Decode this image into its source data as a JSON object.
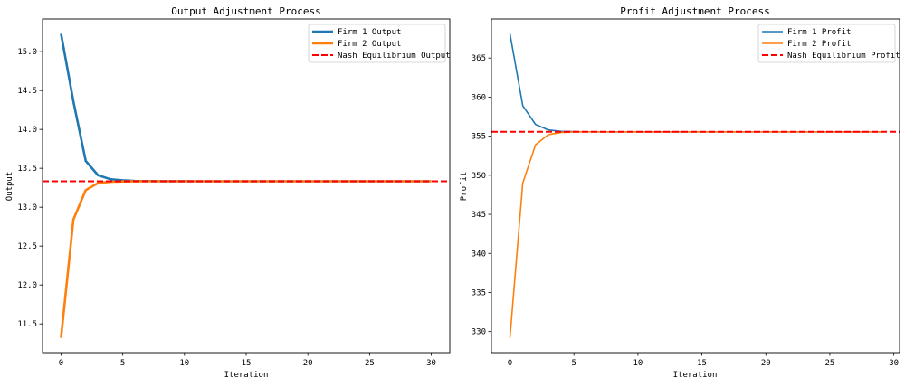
{
  "chart_data": [
    {
      "type": "line",
      "title": "Output Adjustment Process",
      "xlabel": "Iteration",
      "ylabel": "Output",
      "xlim": [
        -1.5,
        31.5
      ],
      "ylim": [
        11.13,
        15.42
      ],
      "xticks": [
        0,
        5,
        10,
        15,
        20,
        25,
        30
      ],
      "yticks": [
        11.5,
        12.0,
        12.5,
        13.0,
        13.5,
        14.0,
        14.5,
        15.0
      ],
      "grid": false,
      "legend_position": "top-right",
      "series": [
        {
          "name": "Firm 1 Output",
          "color": "#1f77b4",
          "x_start": 0,
          "values": [
            15.23,
            14.36,
            13.595,
            13.41,
            13.36,
            13.345,
            13.337,
            13.335,
            13.334,
            13.3335,
            13.3334,
            13.3333,
            13.3333,
            13.3333,
            13.3333,
            13.3333,
            13.3333,
            13.3333,
            13.3333,
            13.3333,
            13.3333,
            13.3333,
            13.3333,
            13.3333,
            13.3333,
            13.3333,
            13.3333,
            13.3333,
            13.3333,
            13.3333,
            13.3333
          ]
        },
        {
          "name": "Firm 2 Output",
          "color": "#ff7f0e",
          "x_start": 0,
          "values": [
            11.32,
            12.84,
            13.22,
            13.31,
            13.327,
            13.331,
            13.3325,
            13.333,
            13.3332,
            13.3333,
            13.3333,
            13.3333,
            13.3333,
            13.3333,
            13.3333,
            13.3333,
            13.3333,
            13.3333,
            13.3333,
            13.3333,
            13.3333,
            13.3333,
            13.3333,
            13.3333,
            13.3333,
            13.3333,
            13.3333,
            13.3333,
            13.3333,
            13.3333,
            13.3333
          ]
        }
      ],
      "hlines": [
        {
          "name": "Nash Equilibrium Output",
          "value": 13.333,
          "color": "#ff0000",
          "style": "dashed"
        }
      ]
    },
    {
      "type": "line",
      "title": "Profit Adjustment Process",
      "xlabel": "Iteration",
      "ylabel": "Profit",
      "xlim": [
        -1.45,
        30.45
      ],
      "ylim": [
        327.3,
        370.0
      ],
      "xticks": [
        0,
        5,
        10,
        15,
        20,
        25,
        30
      ],
      "yticks": [
        330,
        335,
        340,
        345,
        350,
        355,
        360,
        365
      ],
      "grid": false,
      "legend_position": "top-right",
      "series": [
        {
          "name": "Firm 1 Profit",
          "color": "#1f77b4",
          "x_start": 0,
          "values": [
            368.1,
            358.9,
            356.5,
            355.8,
            355.62,
            355.58,
            355.565,
            355.56,
            355.56,
            355.56,
            355.56,
            355.56,
            355.56,
            355.56,
            355.56,
            355.56,
            355.56,
            355.56,
            355.56,
            355.56,
            355.56,
            355.56,
            355.56,
            355.56,
            355.56,
            355.56,
            355.56,
            355.56,
            355.56,
            355.56
          ]
        },
        {
          "name": "Firm 2 Profit",
          "color": "#ff7f0e",
          "x_start": 0,
          "values": [
            329.2,
            349.0,
            353.9,
            355.2,
            355.47,
            355.54,
            355.555,
            355.56,
            355.56,
            355.56,
            355.56,
            355.56,
            355.56,
            355.56,
            355.56,
            355.56,
            355.56,
            355.56,
            355.56,
            355.56,
            355.56,
            355.56,
            355.56,
            355.56,
            355.56,
            355.56,
            355.56,
            355.56,
            355.56,
            355.56
          ]
        }
      ],
      "hlines": [
        {
          "name": "Nash Equilibrium Profit",
          "value": 355.56,
          "color": "#ff0000",
          "style": "dashed"
        }
      ]
    }
  ]
}
